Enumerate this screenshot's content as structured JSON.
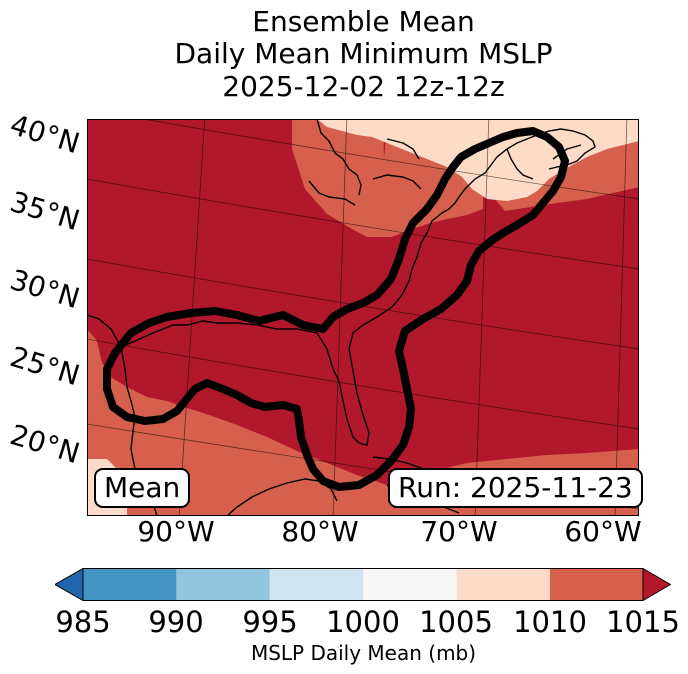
{
  "title": {
    "line1": "Ensemble Mean",
    "line2": "Daily Mean Minimum MSLP",
    "line3": "2025-12-02 12z-12z"
  },
  "map": {
    "lat_labels": [
      "40°N",
      "35°N",
      "30°N",
      "25°N",
      "20°N"
    ],
    "lon_labels": [
      "90°W",
      "80°W",
      "70°W",
      "60°W"
    ],
    "mean_label": "Mean",
    "run_label": "Run: 2025-11-23",
    "contour_color": "#000000",
    "field_colors": {
      "1005-1010": "#fddbc7",
      "1010-1015": "#d6604d",
      "over-1015": "#b2182b"
    }
  },
  "colorbar": {
    "ticks": [
      "985",
      "990",
      "995",
      "1000",
      "1005",
      "1010",
      "1015"
    ],
    "label": "MSLP Daily Mean (mb)",
    "colors": [
      "#2166ac",
      "#4393c3",
      "#92c5de",
      "#d1e5f0",
      "#f7f7f7",
      "#fddbc7",
      "#d6604d",
      "#b2182b"
    ],
    "bins": [
      "<985",
      "985-990",
      "990-995",
      "995-1000",
      "1000-1005",
      "1005-1010",
      "1010-1015",
      ">1015"
    ]
  }
}
